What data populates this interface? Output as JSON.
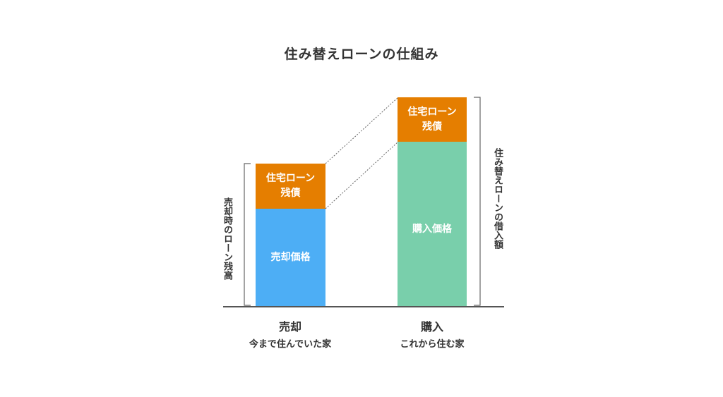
{
  "title": "住み替えローンの仕組み",
  "colors": {
    "loan_balance": "#E57E00",
    "sale_price": "#4DAEF5",
    "purchase_price": "#79CFAB",
    "axis": "#555555",
    "text": "#333333"
  },
  "left_bar": {
    "top_label": [
      "住宅ローン",
      "残債"
    ],
    "bottom_label": "売却価格"
  },
  "right_bar": {
    "top_label": [
      "住宅ローン",
      "残債"
    ],
    "bottom_label": "購入価格"
  },
  "left_bracket_label": "売却時のローン残高",
  "right_bracket_label": "住み替えローンの借入額",
  "categories": [
    {
      "main": "売却",
      "sub": "今まで住んでいた家"
    },
    {
      "main": "購入",
      "sub": "これから住む家"
    }
  ]
}
